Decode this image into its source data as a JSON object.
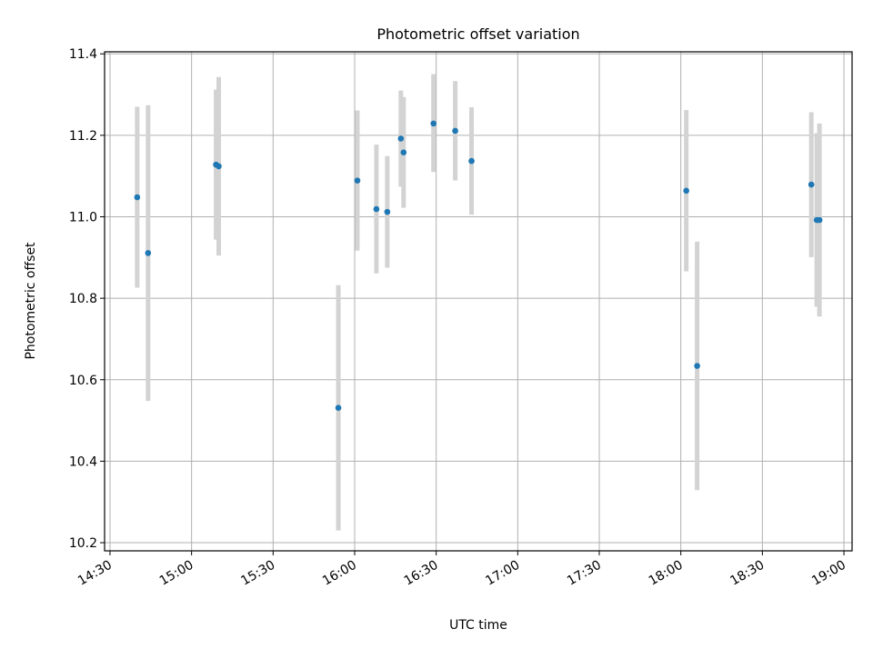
{
  "chart_data": {
    "type": "scatter",
    "title": "Photometric offset variation",
    "xlabel": "UTC time",
    "ylabel": "Photometric offset",
    "xlim": [
      "14:28",
      "19:03"
    ],
    "ylim": [
      10.18,
      11.405
    ],
    "grid": true,
    "x_ticks": [
      "14:30",
      "15:00",
      "15:30",
      "16:00",
      "16:30",
      "17:00",
      "17:30",
      "18:00",
      "18:30",
      "19:00"
    ],
    "y_ticks": [
      "10.2",
      "10.4",
      "10.6",
      "10.8",
      "11.0",
      "11.2",
      "11.4"
    ],
    "series": [
      {
        "color": "#1f77b4",
        "errorbar_color": "#d3d3d3",
        "points": [
          {
            "x": "14:40",
            "y": 11.048,
            "err_low": 10.826,
            "err_high": 11.27
          },
          {
            "x": "14:44",
            "y": 10.911,
            "err_low": 10.548,
            "err_high": 11.274
          },
          {
            "x": "15:09",
            "y": 11.128,
            "err_low": 10.944,
            "err_high": 11.312
          },
          {
            "x": "15:10",
            "y": 11.124,
            "err_low": 10.905,
            "err_high": 11.343
          },
          {
            "x": "15:54",
            "y": 10.531,
            "err_low": 10.23,
            "err_high": 10.832
          },
          {
            "x": "16:01",
            "y": 11.089,
            "err_low": 10.917,
            "err_high": 11.261
          },
          {
            "x": "16:08",
            "y": 11.019,
            "err_low": 10.861,
            "err_high": 11.177
          },
          {
            "x": "16:12",
            "y": 11.012,
            "err_low": 10.875,
            "err_high": 11.149
          },
          {
            "x": "16:17",
            "y": 11.192,
            "err_low": 11.074,
            "err_high": 11.31
          },
          {
            "x": "16:18",
            "y": 11.158,
            "err_low": 11.022,
            "err_high": 11.294
          },
          {
            "x": "16:29",
            "y": 11.229,
            "err_low": 11.11,
            "err_high": 11.35
          },
          {
            "x": "16:37",
            "y": 11.211,
            "err_low": 11.089,
            "err_high": 11.333
          },
          {
            "x": "16:43",
            "y": 11.137,
            "err_low": 11.005,
            "err_high": 11.269
          },
          {
            "x": "18:02",
            "y": 11.064,
            "err_low": 10.866,
            "err_high": 11.262
          },
          {
            "x": "18:06",
            "y": 10.634,
            "err_low": 10.329,
            "err_high": 10.939
          },
          {
            "x": "18:48",
            "y": 11.079,
            "err_low": 10.901,
            "err_high": 11.257
          },
          {
            "x": "18:50",
            "y": 10.992,
            "err_low": 10.779,
            "err_high": 11.205
          },
          {
            "x": "18:51",
            "y": 10.992,
            "err_low": 10.755,
            "err_high": 11.229
          }
        ]
      }
    ]
  }
}
